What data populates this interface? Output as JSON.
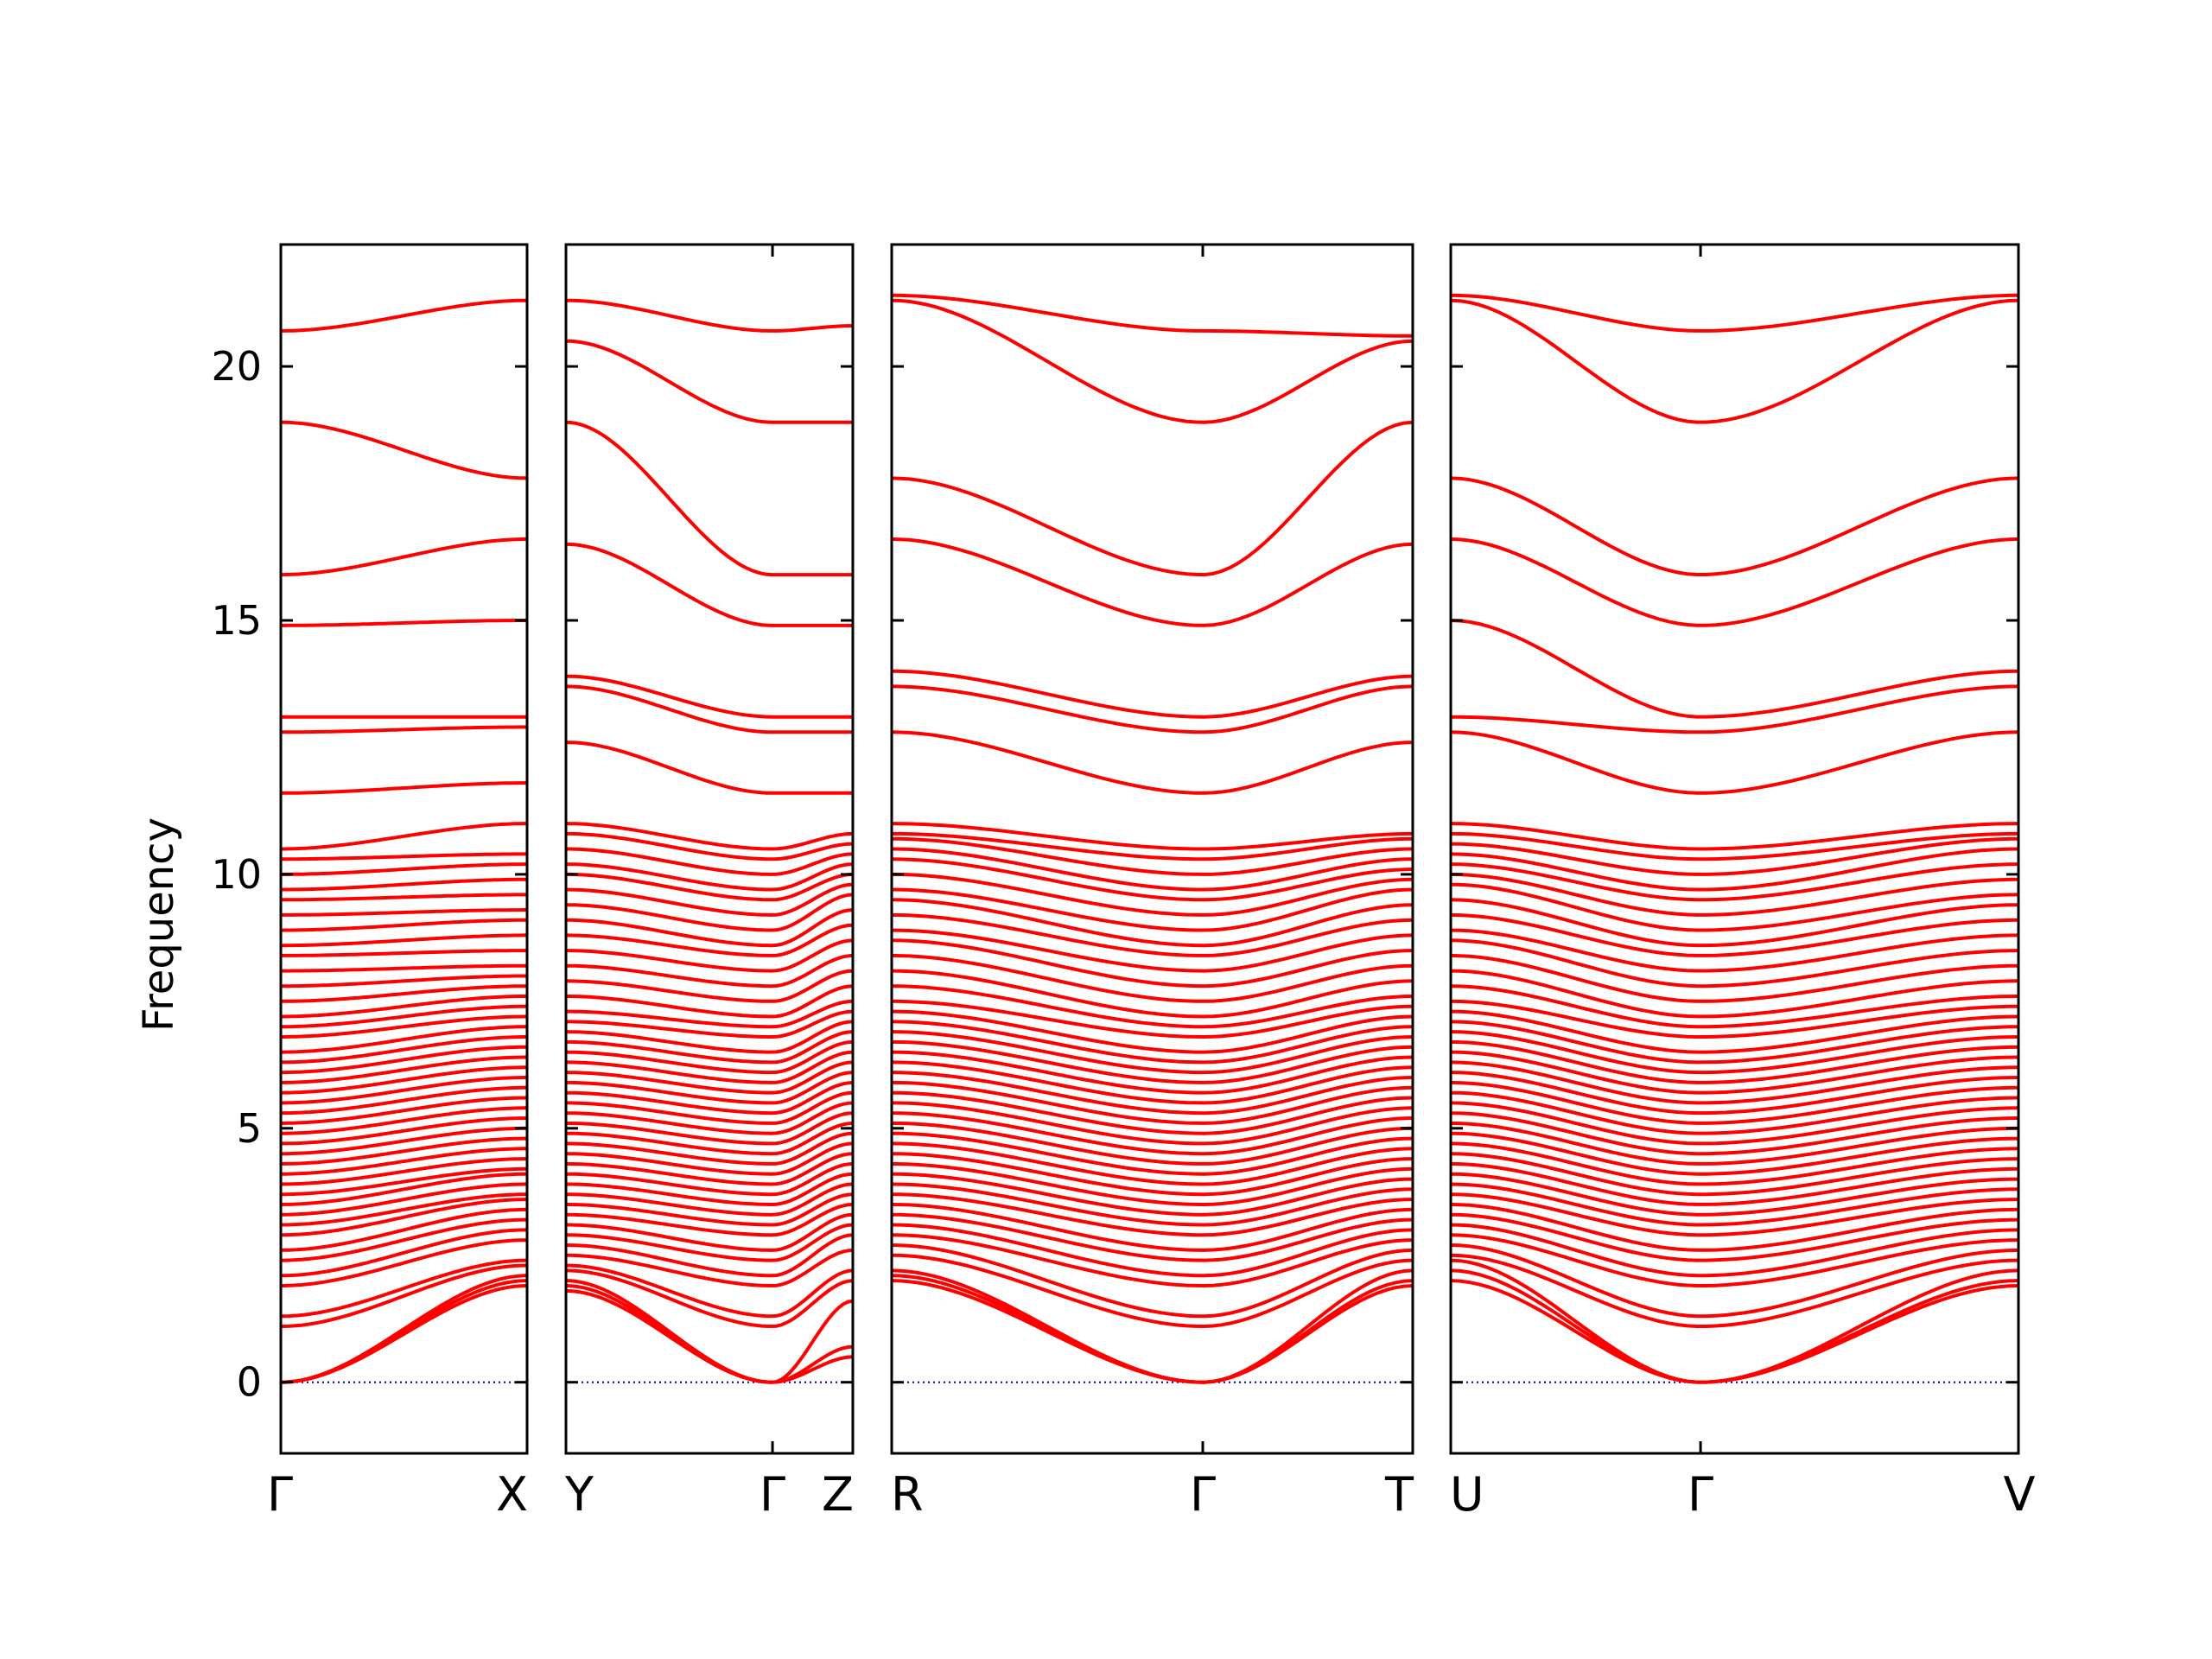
{
  "chart_data": {
    "type": "line",
    "ylabel": "Frequency",
    "ylim": [
      -1.4,
      22.4
    ],
    "yticks": [
      0,
      5,
      10,
      15,
      20
    ],
    "colors": {
      "bands": "#ff0000",
      "zero_line": "#00008b",
      "axes": "#000000"
    },
    "grid": false,
    "legend": "none",
    "segments": [
      {
        "start_label": "Γ",
        "end_label": "X",
        "gamma_at": 0,
        "start_values": [
          0,
          0,
          0,
          1.1,
          1.3,
          1.9,
          2.1,
          2.4,
          2.6,
          2.9,
          3.1,
          3.3,
          3.5,
          3.7,
          3.9,
          4.1,
          4.3,
          4.5,
          4.7,
          4.9,
          5.1,
          5.3,
          5.5,
          5.7,
          5.9,
          6.1,
          6.3,
          6.5,
          6.8,
          7.0,
          7.2,
          7.5,
          7.8,
          8.1,
          8.4,
          8.6,
          8.9,
          9.2,
          9.5,
          9.7,
          10.0,
          10.3,
          10.5,
          11.6,
          12.8,
          13.1,
          14.9,
          15.9,
          18.9,
          20.7
        ],
        "end_values": [
          1.9,
          2.0,
          2.1,
          2.3,
          2.4,
          2.8,
          3.0,
          3.2,
          3.4,
          3.6,
          3.7,
          3.9,
          4.1,
          4.2,
          4.4,
          4.6,
          4.8,
          5.0,
          5.2,
          5.4,
          5.6,
          5.8,
          6.0,
          6.2,
          6.4,
          6.6,
          6.8,
          7.0,
          7.2,
          7.4,
          7.6,
          7.8,
          8.0,
          8.2,
          8.5,
          8.8,
          9.1,
          9.3,
          9.6,
          9.9,
          10.2,
          10.4,
          11.0,
          11.8,
          12.9,
          13.1,
          15.0,
          16.6,
          17.8,
          21.3
        ]
      },
      {
        "start_label": "Y",
        "end_label": "Z",
        "gamma_at": 0.72,
        "gamma_label": "Γ",
        "start_values": [
          1.8,
          1.9,
          2.0,
          2.2,
          2.3,
          2.5,
          2.7,
          2.9,
          3.1,
          3.3,
          3.5,
          3.7,
          3.9,
          4.1,
          4.3,
          4.5,
          4.7,
          4.9,
          5.1,
          5.3,
          5.5,
          5.7,
          5.9,
          6.1,
          6.3,
          6.5,
          6.7,
          6.9,
          7.1,
          7.3,
          7.6,
          7.9,
          8.2,
          8.5,
          8.8,
          9.1,
          9.4,
          9.7,
          10.0,
          10.2,
          10.5,
          10.8,
          11.0,
          12.6,
          13.7,
          13.9,
          16.5,
          18.9,
          20.5,
          21.3
        ],
        "gamma_values": [
          0,
          0,
          0,
          1.1,
          1.3,
          1.9,
          2.1,
          2.4,
          2.6,
          2.9,
          3.1,
          3.3,
          3.5,
          3.7,
          3.9,
          4.1,
          4.3,
          4.5,
          4.7,
          4.9,
          5.1,
          5.3,
          5.5,
          5.7,
          5.9,
          6.1,
          6.3,
          6.5,
          6.8,
          7.0,
          7.2,
          7.5,
          7.8,
          8.1,
          8.4,
          8.6,
          8.9,
          9.2,
          9.5,
          9.7,
          10.0,
          10.3,
          10.5,
          11.6,
          12.8,
          13.1,
          14.9,
          15.9,
          18.9,
          20.7
        ],
        "end_values": [
          0.5,
          0.7,
          1.6,
          2.0,
          2.2,
          2.6,
          2.9,
          3.1,
          3.3,
          3.5,
          3.7,
          3.9,
          4.1,
          4.3,
          4.5,
          4.7,
          4.9,
          5.1,
          5.3,
          5.5,
          5.7,
          5.9,
          6.1,
          6.3,
          6.5,
          6.7,
          6.9,
          7.1,
          7.3,
          7.5,
          7.8,
          8.1,
          8.4,
          8.7,
          9.0,
          9.3,
          9.6,
          9.8,
          10.0,
          10.2,
          10.4,
          10.6,
          10.8,
          11.6,
          12.8,
          13.1,
          14.9,
          15.9,
          18.9,
          20.8
        ]
      },
      {
        "start_label": "R",
        "end_label": "T",
        "gamma_at": 0.597,
        "gamma_label": "Γ",
        "start_values": [
          2.0,
          2.1,
          2.2,
          2.5,
          2.7,
          2.9,
          3.1,
          3.3,
          3.5,
          3.7,
          3.9,
          4.1,
          4.3,
          4.5,
          4.7,
          4.9,
          5.1,
          5.3,
          5.5,
          5.7,
          5.9,
          6.1,
          6.3,
          6.5,
          6.7,
          6.9,
          7.1,
          7.3,
          7.5,
          7.8,
          8.1,
          8.4,
          8.7,
          8.9,
          9.2,
          9.5,
          9.7,
          10.0,
          10.3,
          10.5,
          10.7,
          10.8,
          11.0,
          12.8,
          13.7,
          14.0,
          16.6,
          17.8,
          21.3,
          21.4
        ],
        "gamma_values": [
          0,
          0,
          0,
          1.1,
          1.3,
          1.9,
          2.1,
          2.4,
          2.6,
          2.9,
          3.1,
          3.3,
          3.5,
          3.7,
          3.9,
          4.1,
          4.3,
          4.5,
          4.7,
          4.9,
          5.1,
          5.3,
          5.5,
          5.7,
          5.9,
          6.1,
          6.3,
          6.5,
          6.8,
          7.0,
          7.2,
          7.5,
          7.8,
          8.1,
          8.4,
          8.6,
          8.9,
          9.2,
          9.5,
          9.7,
          10.0,
          10.3,
          10.5,
          11.6,
          12.8,
          13.1,
          14.9,
          15.9,
          18.9,
          20.7
        ],
        "end_values": [
          1.9,
          2.0,
          2.2,
          2.4,
          2.6,
          2.8,
          3.0,
          3.2,
          3.4,
          3.6,
          3.8,
          4.0,
          4.2,
          4.4,
          4.6,
          4.8,
          5.0,
          5.2,
          5.4,
          5.6,
          5.8,
          6.0,
          6.2,
          6.4,
          6.6,
          6.8,
          7.0,
          7.2,
          7.4,
          7.6,
          7.9,
          8.2,
          8.5,
          8.8,
          9.1,
          9.4,
          9.7,
          9.9,
          10.1,
          10.3,
          10.5,
          10.7,
          10.8,
          12.6,
          13.7,
          13.9,
          16.5,
          18.9,
          20.5,
          20.6
        ]
      },
      {
        "start_label": "U",
        "end_label": "V",
        "gamma_at": 0.44,
        "gamma_label": "Γ",
        "start_values": [
          2.0,
          2.2,
          2.4,
          2.5,
          2.7,
          2.9,
          3.1,
          3.3,
          3.5,
          3.7,
          3.9,
          4.1,
          4.3,
          4.5,
          4.7,
          4.9,
          5.1,
          5.3,
          5.5,
          5.7,
          5.9,
          6.1,
          6.3,
          6.5,
          6.7,
          6.9,
          7.1,
          7.3,
          7.5,
          7.8,
          8.1,
          8.4,
          8.7,
          8.9,
          9.2,
          9.5,
          9.8,
          10.0,
          10.2,
          10.4,
          10.6,
          10.8,
          11.0,
          12.8,
          13.1,
          15.0,
          16.6,
          17.8,
          21.3,
          21.4
        ],
        "gamma_values": [
          0,
          0,
          0,
          1.1,
          1.3,
          1.9,
          2.1,
          2.4,
          2.6,
          2.9,
          3.1,
          3.3,
          3.5,
          3.7,
          3.9,
          4.1,
          4.3,
          4.5,
          4.7,
          4.9,
          5.1,
          5.3,
          5.5,
          5.7,
          5.9,
          6.1,
          6.3,
          6.5,
          6.8,
          7.0,
          7.2,
          7.5,
          7.8,
          8.1,
          8.4,
          8.6,
          8.9,
          9.2,
          9.5,
          9.7,
          10.0,
          10.3,
          10.5,
          11.6,
          12.8,
          13.1,
          14.9,
          15.9,
          18.9,
          20.7
        ],
        "end_values": [
          1.9,
          2.0,
          2.2,
          2.4,
          2.6,
          2.8,
          3.0,
          3.2,
          3.4,
          3.6,
          3.8,
          4.0,
          4.2,
          4.4,
          4.6,
          4.8,
          5.0,
          5.2,
          5.4,
          5.6,
          5.8,
          6.0,
          6.2,
          6.4,
          6.6,
          6.8,
          7.0,
          7.2,
          7.4,
          7.6,
          7.9,
          8.2,
          8.5,
          8.8,
          9.1,
          9.4,
          9.6,
          9.9,
          10.2,
          10.5,
          10.7,
          10.8,
          11.0,
          12.8,
          13.7,
          14.0,
          16.6,
          17.8,
          21.3,
          21.4
        ]
      }
    ]
  }
}
